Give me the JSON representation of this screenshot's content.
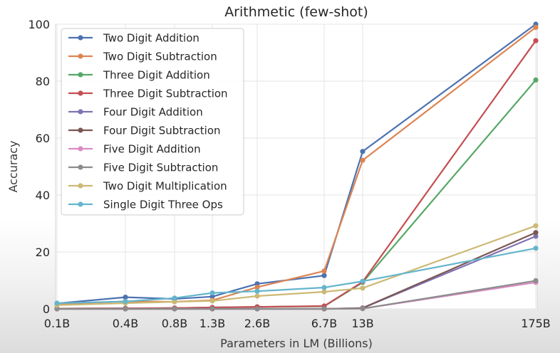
{
  "chart_data": {
    "type": "line",
    "title": "Arithmetic (few-shot)",
    "xlabel": "Parameters in LM (Billions)",
    "ylabel": "Accuracy",
    "x": [
      "0.1B",
      "0.4B",
      "0.8B",
      "1.3B",
      "2.6B",
      "6.7B",
      "13B",
      "175B"
    ],
    "ylim": [
      0,
      100
    ],
    "yticks": [
      0,
      20,
      40,
      60,
      80,
      100
    ],
    "grid": true,
    "legend_position": "top-left",
    "series": [
      {
        "name": "Two Digit Addition",
        "color": "#4c72b0",
        "values": [
          1.9,
          4.1,
          3.5,
          4.3,
          8.8,
          11.7,
          55.3,
          100
        ]
      },
      {
        "name": "Two Digit Subtraction",
        "color": "#dd8452",
        "values": [
          1.7,
          2.6,
          2.5,
          3.0,
          7.6,
          13.3,
          52.2,
          98.9
        ]
      },
      {
        "name": "Three Digit Addition",
        "color": "#55a868",
        "values": [
          0.1,
          0.2,
          0.3,
          0.5,
          0.7,
          0.9,
          9.3,
          80.4
        ]
      },
      {
        "name": "Three Digit Subtraction",
        "color": "#c44e52",
        "values": [
          0.1,
          0.2,
          0.3,
          0.5,
          0.7,
          1.0,
          9.5,
          94.2
        ]
      },
      {
        "name": "Four Digit Addition",
        "color": "#8172b3",
        "values": [
          0,
          0,
          0,
          0,
          0,
          0,
          0.3,
          25.5
        ]
      },
      {
        "name": "Four Digit Subtraction",
        "color": "#7b5652",
        "values": [
          0,
          0,
          0,
          0,
          0,
          0,
          0.3,
          26.8
        ]
      },
      {
        "name": "Five Digit Addition",
        "color": "#da8bc3",
        "values": [
          0,
          0,
          0,
          0,
          0,
          0,
          0.1,
          9.3
        ]
      },
      {
        "name": "Five Digit Subtraction",
        "color": "#8c8c8c",
        "values": [
          0,
          0,
          0,
          0,
          0,
          0,
          0.1,
          9.9
        ]
      },
      {
        "name": "Two Digit Multiplication",
        "color": "#ccb974",
        "values": [
          1.3,
          2.0,
          2.5,
          2.8,
          4.5,
          6.0,
          7.3,
          29.2
        ]
      },
      {
        "name": "Single Digit Three Ops",
        "color": "#64b5cd",
        "values": [
          2.0,
          2.6,
          3.8,
          5.6,
          6.2,
          7.5,
          9.7,
          21.3
        ]
      }
    ]
  }
}
